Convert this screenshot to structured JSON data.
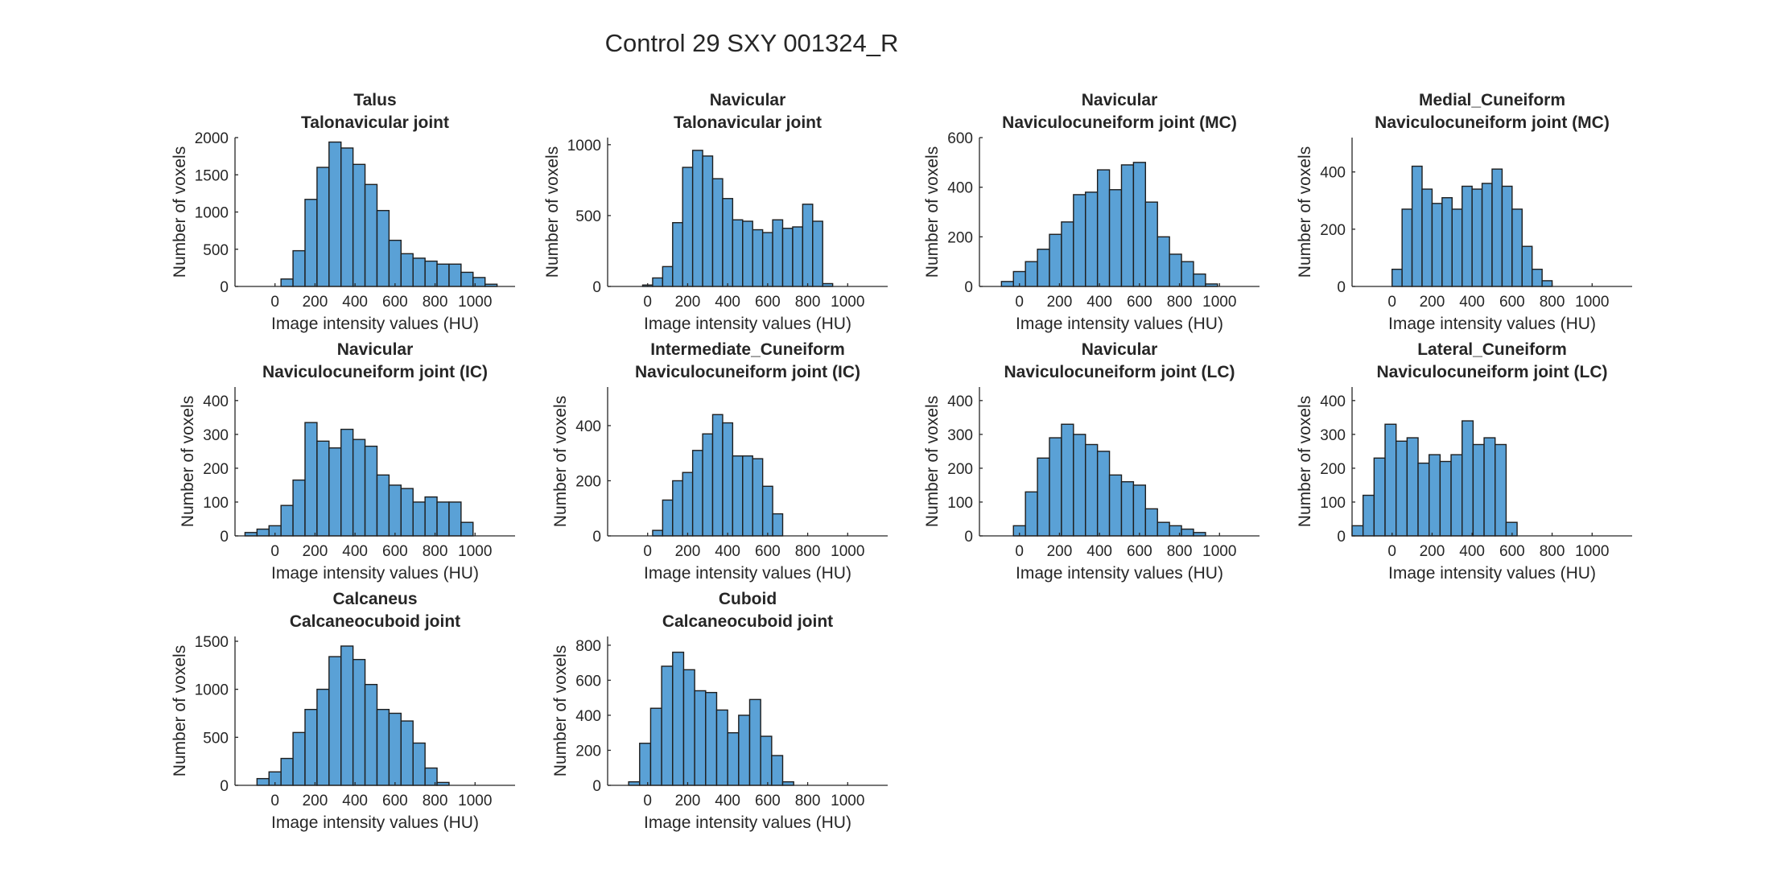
{
  "figure": {
    "title": "Control 29 SXY 001324_R",
    "bar_color": "#5aa1d6",
    "edge_color": "#1e1e1e"
  },
  "chart_data": [
    {
      "type": "bar",
      "title": [
        "Talus",
        "Talonavicular joint"
      ],
      "xlabel": "Image intensity values (HU)",
      "ylabel": "Number of voxels",
      "xlim": [
        -200,
        1200
      ],
      "ylim": [
        0,
        2000
      ],
      "xticks": [
        0,
        200,
        400,
        600,
        800,
        1000
      ],
      "yticks": [
        0,
        500,
        1000,
        1500,
        2000
      ],
      "bin_width": 60,
      "bin_edges_start": 30,
      "values": [
        100,
        480,
        1170,
        1600,
        1940,
        1860,
        1640,
        1370,
        1020,
        620,
        440,
        380,
        340,
        300,
        300,
        190,
        120,
        30
      ]
    },
    {
      "type": "bar",
      "title": [
        "Navicular",
        "Talonavicular joint"
      ],
      "xlabel": "Image intensity values (HU)",
      "ylabel": "Number of voxels",
      "xlim": [
        -200,
        1200
      ],
      "ylim": [
        0,
        1050
      ],
      "xticks": [
        0,
        200,
        400,
        600,
        800,
        1000
      ],
      "yticks": [
        0,
        500,
        1000
      ],
      "bin_width": 50,
      "bin_edges_start": -25,
      "values": [
        10,
        60,
        140,
        450,
        840,
        960,
        920,
        760,
        620,
        470,
        460,
        400,
        380,
        470,
        410,
        420,
        580,
        460,
        20
      ]
    },
    {
      "type": "bar",
      "title": [
        "Navicular",
        "Naviculocuneiform joint (MC)"
      ],
      "xlabel": "Image intensity values (HU)",
      "ylabel": "Number of voxels",
      "xlim": [
        -200,
        1200
      ],
      "ylim": [
        0,
        600
      ],
      "xticks": [
        0,
        200,
        400,
        600,
        800,
        1000
      ],
      "yticks": [
        0,
        200,
        400,
        600
      ],
      "bin_width": 60,
      "bin_edges_start": -90,
      "values": [
        20,
        60,
        100,
        150,
        210,
        260,
        370,
        380,
        470,
        390,
        490,
        500,
        340,
        200,
        130,
        100,
        50,
        10
      ]
    },
    {
      "type": "bar",
      "title": [
        "Medial_Cuneiform",
        "Naviculocuneiform joint (MC)"
      ],
      "xlabel": "Image intensity values (HU)",
      "ylabel": "Number of voxels",
      "xlim": [
        -200,
        1200
      ],
      "ylim": [
        0,
        520
      ],
      "xticks": [
        0,
        200,
        400,
        600,
        800,
        1000
      ],
      "yticks": [
        0,
        200,
        400
      ],
      "bin_width": 50,
      "bin_edges_start": 0,
      "values": [
        60,
        270,
        420,
        340,
        290,
        310,
        270,
        350,
        340,
        360,
        410,
        350,
        270,
        140,
        60,
        20
      ]
    },
    {
      "type": "bar",
      "title": [
        "Navicular",
        "Naviculocuneiform joint (IC)"
      ],
      "xlabel": "Image intensity values (HU)",
      "ylabel": "Number of voxels",
      "xlim": [
        -200,
        1200
      ],
      "ylim": [
        0,
        440
      ],
      "xticks": [
        0,
        200,
        400,
        600,
        800,
        1000
      ],
      "yticks": [
        0,
        100,
        200,
        300,
        400
      ],
      "bin_width": 60,
      "bin_edges_start": -150,
      "values": [
        10,
        20,
        30,
        90,
        165,
        335,
        280,
        260,
        315,
        285,
        265,
        180,
        150,
        140,
        100,
        115,
        100,
        100,
        40
      ]
    },
    {
      "type": "bar",
      "title": [
        "Intermediate_Cuneiform",
        "Naviculocuneiform joint (IC)"
      ],
      "xlabel": "Image intensity values (HU)",
      "ylabel": "Number of voxels",
      "xlim": [
        -200,
        1200
      ],
      "ylim": [
        0,
        540
      ],
      "xticks": [
        0,
        200,
        400,
        600,
        800,
        1000
      ],
      "yticks": [
        0,
        200,
        400
      ],
      "bin_width": 50,
      "bin_edges_start": 25,
      "values": [
        20,
        130,
        200,
        230,
        310,
        370,
        440,
        410,
        290,
        290,
        280,
        180,
        80
      ]
    },
    {
      "type": "bar",
      "title": [
        "Navicular",
        "Naviculocuneiform joint (LC)"
      ],
      "xlabel": "Image intensity values (HU)",
      "ylabel": "Number of voxels",
      "xlim": [
        -200,
        1200
      ],
      "ylim": [
        0,
        440
      ],
      "xticks": [
        0,
        200,
        400,
        600,
        800,
        1000
      ],
      "yticks": [
        0,
        100,
        200,
        300,
        400
      ],
      "bin_width": 60,
      "bin_edges_start": -30,
      "values": [
        30,
        130,
        230,
        290,
        330,
        300,
        270,
        250,
        180,
        160,
        150,
        80,
        40,
        30,
        20,
        10
      ]
    },
    {
      "type": "bar",
      "title": [
        "Lateral_Cuneiform",
        "Naviculocuneiform joint (LC)"
      ],
      "xlabel": "Image intensity values (HU)",
      "ylabel": "Number of voxels",
      "xlim": [
        -200,
        1200
      ],
      "ylim": [
        0,
        440
      ],
      "xticks": [
        0,
        200,
        400,
        600,
        800,
        1000
      ],
      "yticks": [
        0,
        100,
        200,
        300,
        400
      ],
      "bin_width": 55,
      "bin_edges_start": -200,
      "values": [
        30,
        120,
        230,
        330,
        280,
        290,
        215,
        240,
        220,
        240,
        340,
        270,
        290,
        270,
        40
      ]
    },
    {
      "type": "bar",
      "title": [
        "Calcaneus",
        "Calcaneocuboid joint"
      ],
      "xlabel": "Image intensity values (HU)",
      "ylabel": "Number of voxels",
      "xlim": [
        -200,
        1200
      ],
      "ylim": [
        0,
        1550
      ],
      "xticks": [
        0,
        200,
        400,
        600,
        800,
        1000
      ],
      "yticks": [
        0,
        500,
        1000,
        1500
      ],
      "bin_width": 60,
      "bin_edges_start": -90,
      "values": [
        70,
        140,
        280,
        550,
        790,
        1000,
        1340,
        1450,
        1310,
        1050,
        790,
        750,
        670,
        440,
        180,
        30
      ]
    },
    {
      "type": "bar",
      "title": [
        "Cuboid",
        "Calcaneocuboid joint"
      ],
      "xlabel": "Image intensity values (HU)",
      "ylabel": "Number of voxels",
      "xlim": [
        -200,
        1200
      ],
      "ylim": [
        0,
        850
      ],
      "xticks": [
        0,
        200,
        400,
        600,
        800,
        1000
      ],
      "yticks": [
        0,
        200,
        400,
        600,
        800
      ],
      "bin_width": 55,
      "bin_edges_start": -95,
      "values": [
        20,
        240,
        440,
        680,
        760,
        660,
        540,
        530,
        430,
        300,
        400,
        490,
        280,
        170,
        20
      ]
    }
  ]
}
